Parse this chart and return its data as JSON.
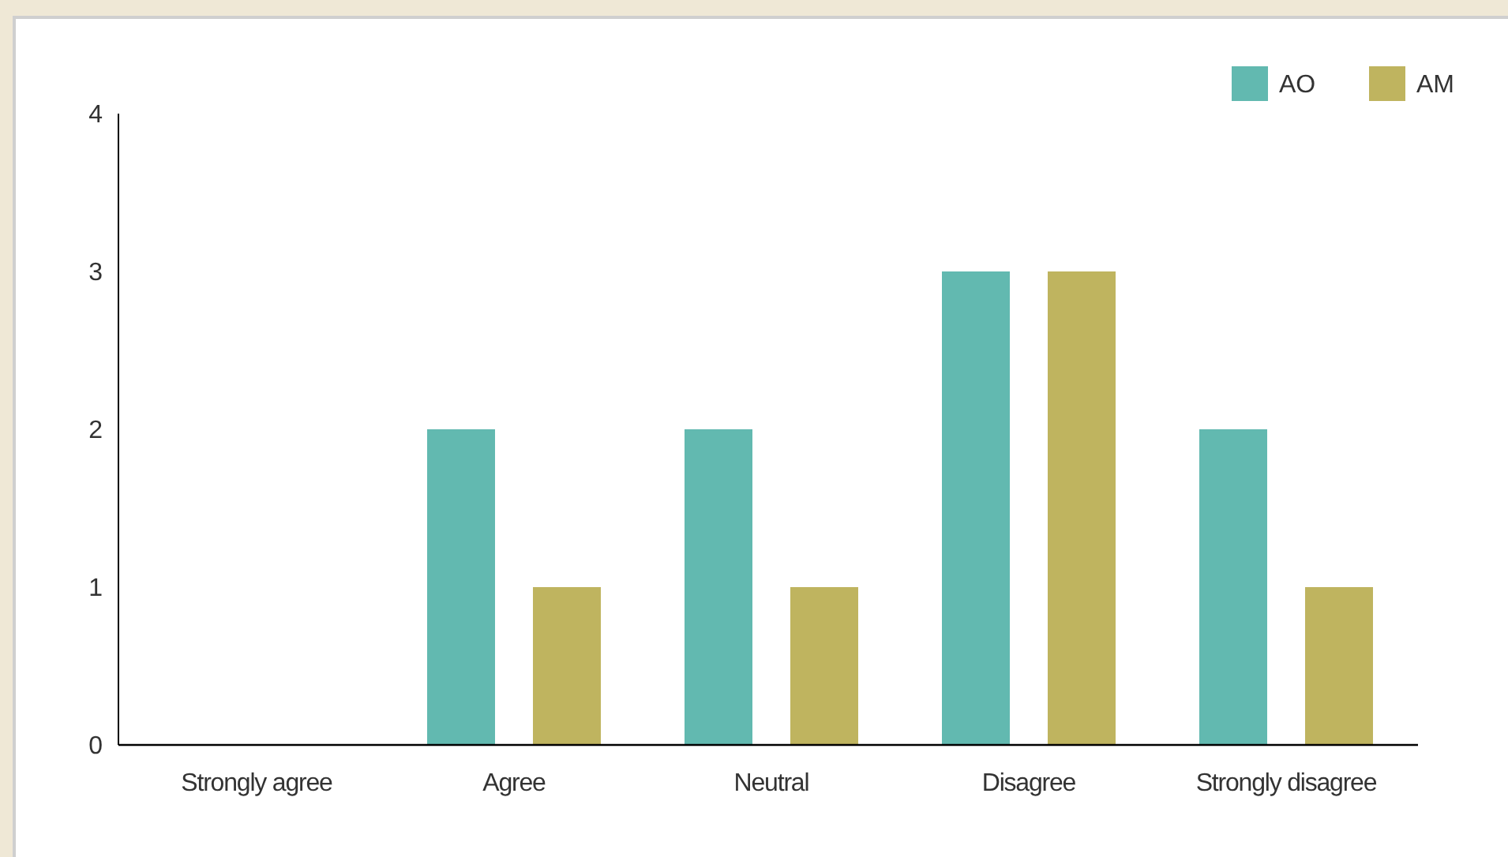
{
  "chart_data": {
    "type": "bar",
    "categories": [
      "Strongly agree",
      "Agree",
      "Neutral",
      "Disagree",
      "Strongly disagree"
    ],
    "series": [
      {
        "name": "AO",
        "color": "#62b9b0",
        "values": [
          0,
          2,
          2,
          3,
          2
        ]
      },
      {
        "name": "AM",
        "color": "#bfb45f",
        "values": [
          0,
          1,
          1,
          3,
          1
        ]
      }
    ],
    "ylim": [
      0,
      4
    ],
    "yticks": [
      0,
      1,
      2,
      3,
      4
    ],
    "grid": false,
    "legend": "top right"
  }
}
